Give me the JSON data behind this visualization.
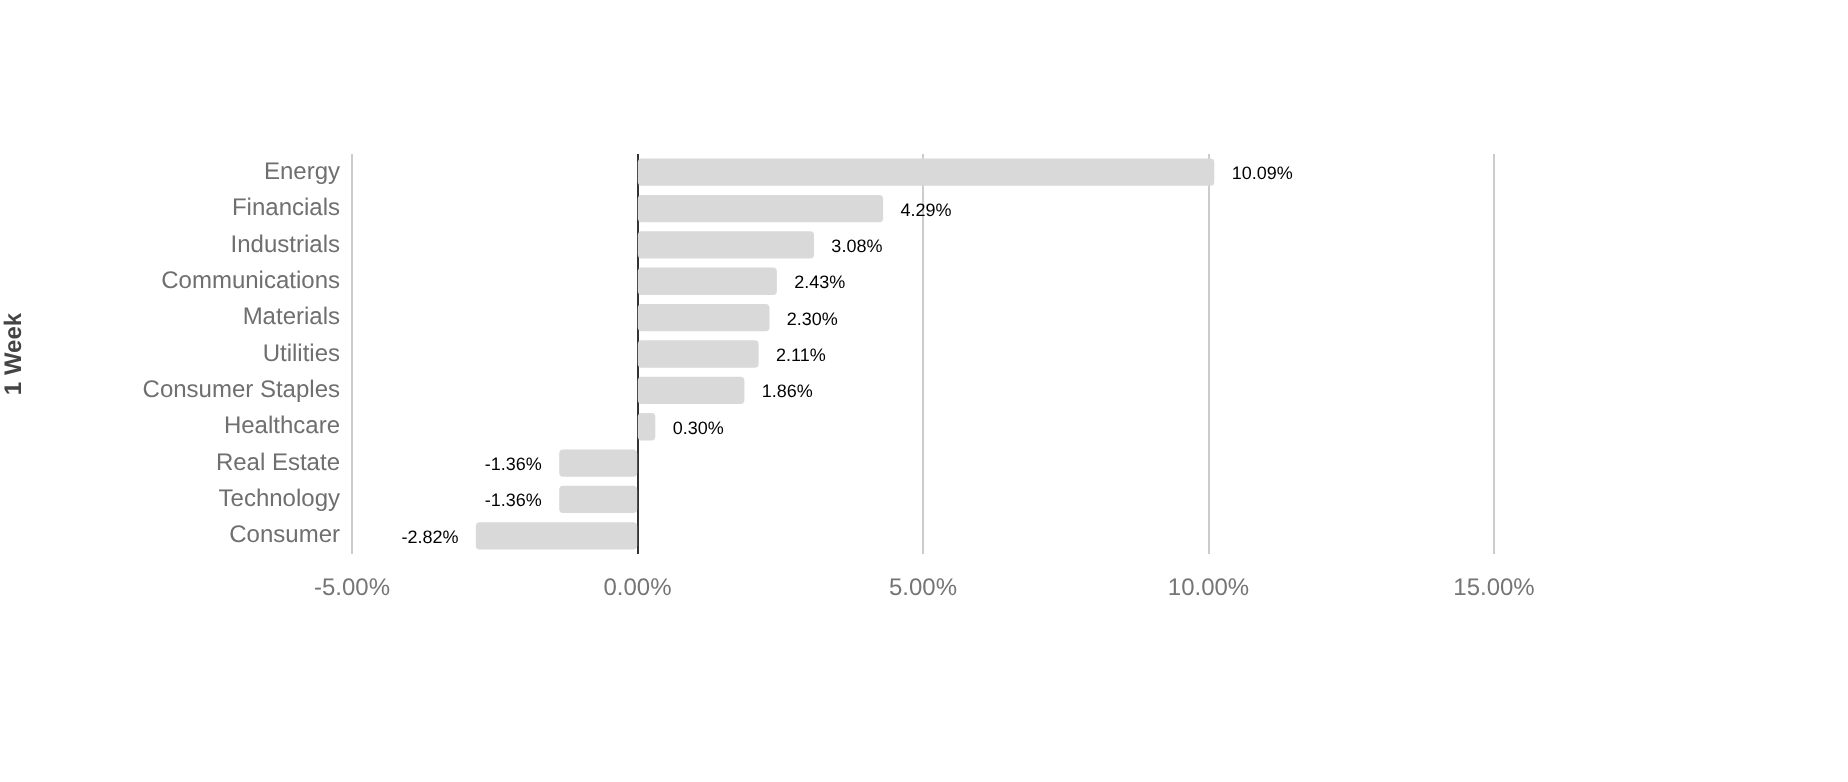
{
  "chart_data": {
    "type": "bar",
    "orientation": "horizontal",
    "ylabel": "1 Week",
    "categories": [
      "Energy",
      "Financials",
      "Industrials",
      "Communications",
      "Materials",
      "Utilities",
      "Consumer Staples",
      "Healthcare",
      "Real Estate",
      "Technology",
      "Consumer"
    ],
    "values": [
      10.09,
      4.29,
      3.08,
      2.43,
      2.3,
      2.11,
      1.86,
      0.3,
      -1.36,
      -1.36,
      -2.82
    ],
    "value_labels": [
      "10.09%",
      "4.29%",
      "3.08%",
      "2.43%",
      "2.30%",
      "2.11%",
      "1.86%",
      "0.30%",
      "-1.36%",
      "-1.36%",
      "-2.82%"
    ],
    "color": "#d9d9d9",
    "xlim": [
      -5,
      15
    ],
    "xticks": [
      {
        "value": -5,
        "label": "-5.00%"
      },
      {
        "value": 0,
        "label": "0.00%"
      },
      {
        "value": 5,
        "label": "5.00%"
      },
      {
        "value": 10,
        "label": "10.00%"
      },
      {
        "value": 15,
        "label": "15.00%"
      }
    ],
    "grid": "x",
    "legend": false
  }
}
